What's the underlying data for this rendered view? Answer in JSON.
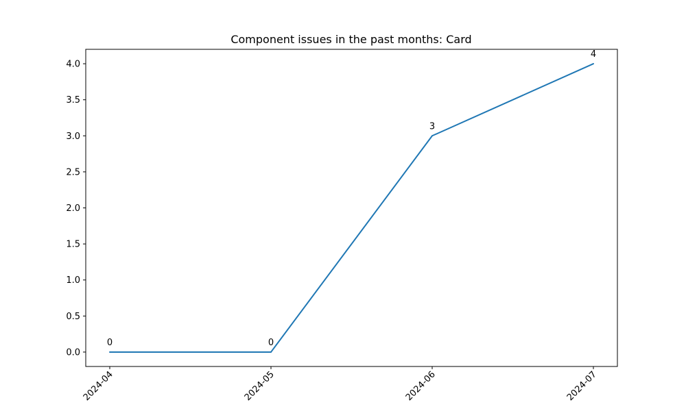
{
  "chart_data": {
    "type": "line",
    "title": "Component issues in the past months: Card",
    "xlabel": "",
    "ylabel": "",
    "x": [
      "2024-04",
      "2024-05",
      "2024-06",
      "2024-07"
    ],
    "series": [
      {
        "values": [
          0,
          0,
          3,
          4
        ],
        "color": "#1f77b4"
      }
    ],
    "data_labels": [
      "0",
      "0",
      "3",
      "4"
    ],
    "yticks": [
      0.0,
      0.5,
      1.0,
      1.5,
      2.0,
      2.5,
      3.0,
      3.5,
      4.0
    ],
    "ytick_labels": [
      "0.0",
      "0.5",
      "1.0",
      "1.5",
      "2.0",
      "2.5",
      "3.0",
      "3.5",
      "4.0"
    ],
    "ylim": [
      -0.2,
      4.2
    ],
    "grid": false,
    "legend": "none"
  }
}
